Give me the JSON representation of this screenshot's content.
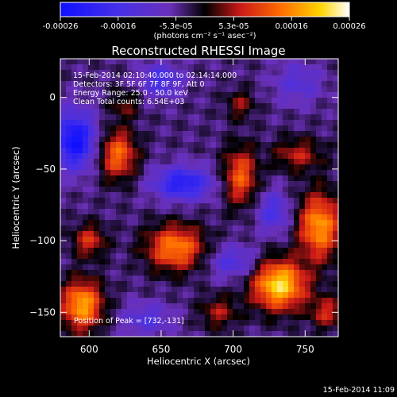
{
  "colorbar": {
    "ticks": [
      "-0.00026",
      "-0.00016",
      "-5.3e-05",
      "5.3e-05",
      "0.00016",
      "0.00026"
    ],
    "units": "(photons cm⁻² s⁻¹ asec⁻²)",
    "range": [
      -0.00026,
      0.00026
    ]
  },
  "chart_data": {
    "type": "heatmap",
    "title": "Reconstructed RHESSI Image",
    "xlabel": "Heliocentric X (arcsec)",
    "ylabel": "Heliocentric Y (arcsec)",
    "xlim": [
      580,
      773
    ],
    "ylim": [
      -167,
      27
    ],
    "xticks": [
      600,
      650,
      700,
      750
    ],
    "yticks": [
      0,
      -50,
      -100,
      -150
    ],
    "annotations": [
      "15-Feb-2014 02:10:40.000 to 02:14:14.000",
      "Detectors: 3F 5F 6F 7F 8F 9F, Att 0",
      "Energy Range: 25.0 - 50.0 keV",
      "Clean    Total counts: 6.54E+03"
    ],
    "peak_label": "Position of Peak = [732,-131]",
    "peak": [
      732,
      -131
    ],
    "colormap": "blue-purple-black-red-orange-yellow-white",
    "blobs": [
      {
        "x": 620,
        "y": -40,
        "sx": 9,
        "sy": 12,
        "amp": 0.00017
      },
      {
        "x": 595,
        "y": -145,
        "sx": 10,
        "sy": 12,
        "amp": 0.00022
      },
      {
        "x": 600,
        "y": -100,
        "sx": 8,
        "sy": 8,
        "amp": 0.00012
      },
      {
        "x": 660,
        "y": -105,
        "sx": 14,
        "sy": 11,
        "amp": 0.00019
      },
      {
        "x": 705,
        "y": -55,
        "sx": 8,
        "sy": 14,
        "amp": 0.00016
      },
      {
        "x": 705,
        "y": -5,
        "sx": 7,
        "sy": 7,
        "amp": 8e-05
      },
      {
        "x": 625,
        "y": -5,
        "sx": 7,
        "sy": 7,
        "amp": 7e-05
      },
      {
        "x": 760,
        "y": -90,
        "sx": 10,
        "sy": 16,
        "amp": 0.00021
      },
      {
        "x": 745,
        "y": -40,
        "sx": 12,
        "sy": 8,
        "amp": 0.0001
      },
      {
        "x": 732,
        "y": -131,
        "sx": 13,
        "sy": 12,
        "amp": 0.00026
      },
      {
        "x": 690,
        "y": -150,
        "sx": 9,
        "sy": 8,
        "amp": 9e-05
      },
      {
        "x": 765,
        "y": -150,
        "sx": 8,
        "sy": 8,
        "amp": 0.00011
      },
      {
        "x": 590,
        "y": -30,
        "sx": 10,
        "sy": 14,
        "amp": -0.00022
      },
      {
        "x": 665,
        "y": -60,
        "sx": 14,
        "sy": 8,
        "amp": -0.00018
      },
      {
        "x": 650,
        "y": 12,
        "sx": 10,
        "sy": 8,
        "amp": -0.00012
      },
      {
        "x": 700,
        "y": -115,
        "sx": 12,
        "sy": 8,
        "amp": -0.0001
      },
      {
        "x": 745,
        "y": 10,
        "sx": 12,
        "sy": 10,
        "amp": -8e-05
      },
      {
        "x": 640,
        "y": -155,
        "sx": 12,
        "sy": 8,
        "amp": -9e-05
      },
      {
        "x": 728,
        "y": -80,
        "sx": 8,
        "sy": 10,
        "amp": -0.00011
      }
    ]
  },
  "footer": {
    "timestamp": "15-Feb-2014 11:09"
  }
}
